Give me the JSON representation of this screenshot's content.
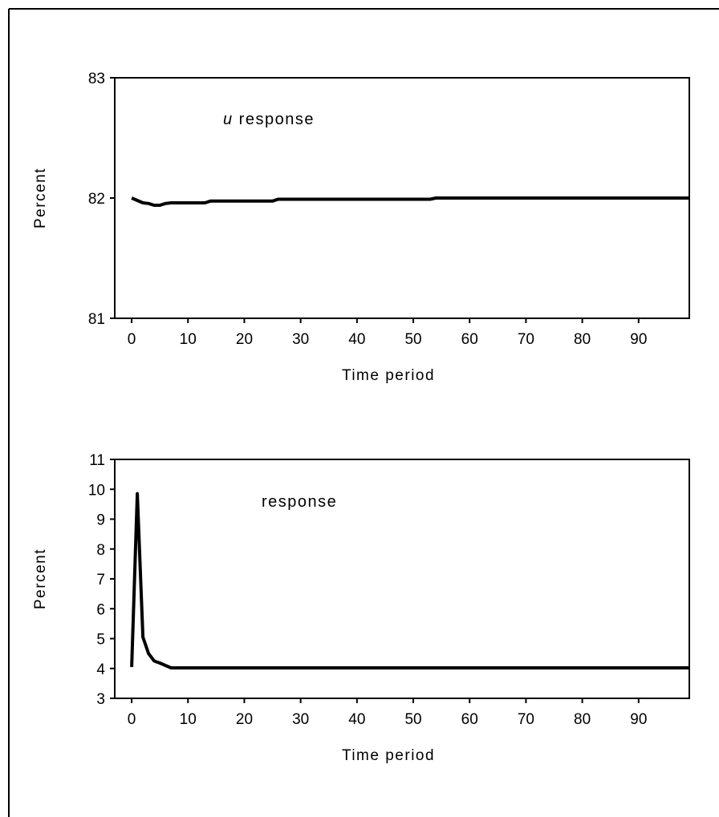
{
  "chart_data": [
    {
      "type": "line",
      "annotation_italic": "u",
      "annotation": " response",
      "xlabel": "Time period",
      "ylabel": "Percent",
      "xlim": [
        -3,
        99
      ],
      "ylim": [
        81,
        83
      ],
      "xticks": [
        0,
        10,
        20,
        30,
        40,
        50,
        60,
        70,
        80,
        90
      ],
      "yticks": [
        81,
        82,
        83
      ],
      "grid": false,
      "series": [
        {
          "line_color": "#000000",
          "points": [
            [
              0,
              82.0
            ],
            [
              1,
              81.98
            ],
            [
              2,
              81.96
            ],
            [
              3,
              81.955
            ],
            [
              4,
              81.94
            ],
            [
              5,
              81.94
            ],
            [
              6,
              81.955
            ],
            [
              7,
              81.96
            ],
            [
              13,
              81.96
            ],
            [
              14,
              81.975
            ],
            [
              25,
              81.975
            ],
            [
              26,
              81.99
            ],
            [
              53,
              81.99
            ],
            [
              54,
              82.0
            ],
            [
              99,
              82.0
            ]
          ]
        }
      ]
    },
    {
      "type": "line",
      "annotation_italic": "",
      "annotation": "response",
      "xlabel": "Time period",
      "ylabel": "Percent",
      "xlim": [
        -3,
        99
      ],
      "ylim": [
        3,
        11
      ],
      "xticks": [
        0,
        10,
        20,
        30,
        40,
        50,
        60,
        70,
        80,
        90
      ],
      "yticks": [
        3,
        4,
        5,
        6,
        7,
        8,
        9,
        10,
        11
      ],
      "grid": false,
      "series": [
        {
          "line_color": "#000000",
          "points": [
            [
              0,
              4.05
            ],
            [
              1,
              9.85
            ],
            [
              2,
              5.05
            ],
            [
              3,
              4.5
            ],
            [
              4,
              4.25
            ],
            [
              5,
              4.18
            ],
            [
              6,
              4.1
            ],
            [
              7,
              4.02
            ],
            [
              99,
              4.02
            ]
          ]
        }
      ]
    }
  ]
}
